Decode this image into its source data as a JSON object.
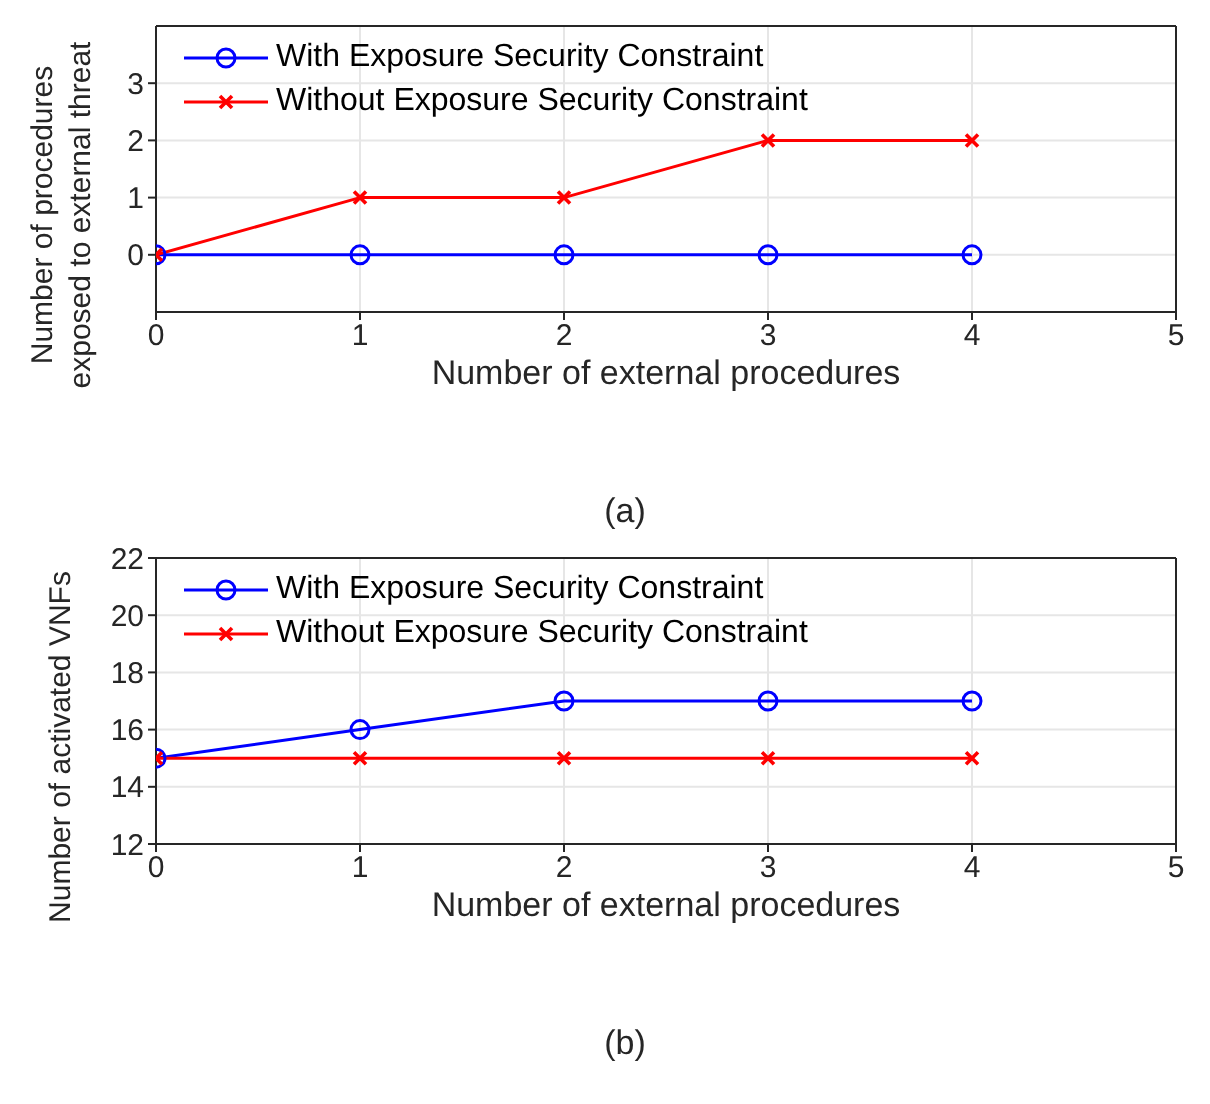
{
  "chart_data": [
    {
      "type": "line",
      "xlabel": "Number of external procedures",
      "ylabel": "Number of procedures\nexposed to external threat",
      "annotations": [
        "(a)"
      ],
      "x": [
        0,
        1,
        2,
        3,
        4
      ],
      "xlim": [
        0,
        5
      ],
      "xticks": [
        0,
        1,
        2,
        3,
        4,
        5
      ],
      "ylim": [
        -1,
        4
      ],
      "yticks": [
        0,
        1,
        2,
        3
      ],
      "grid": true,
      "legend": "top left",
      "series": [
        {
          "name": "With Exposure Security Constraint",
          "color": "#0000ff",
          "marker": "circle",
          "values": [
            0,
            0,
            0,
            0,
            0
          ]
        },
        {
          "name": "Without Exposure Security Constraint",
          "color": "#ff0000",
          "marker": "cross",
          "values": [
            0,
            1,
            1,
            2,
            2
          ]
        }
      ]
    },
    {
      "type": "line",
      "xlabel": "Number of external procedures",
      "ylabel": "Number of activated VNFs",
      "annotations": [
        "(b)"
      ],
      "x": [
        0,
        1,
        2,
        3,
        4
      ],
      "xlim": [
        0,
        5
      ],
      "xticks": [
        0,
        1,
        2,
        3,
        4,
        5
      ],
      "ylim": [
        12,
        22
      ],
      "yticks": [
        12,
        14,
        16,
        18,
        20,
        22
      ],
      "grid": true,
      "legend": "top left",
      "series": [
        {
          "name": "With Exposure Security Constraint",
          "color": "#0000ff",
          "marker": "circle",
          "values": [
            15,
            16,
            17,
            17,
            17
          ]
        },
        {
          "name": "Without Exposure Security Constraint",
          "color": "#ff0000",
          "marker": "cross",
          "values": [
            15,
            15,
            15,
            15,
            15
          ]
        }
      ]
    }
  ]
}
